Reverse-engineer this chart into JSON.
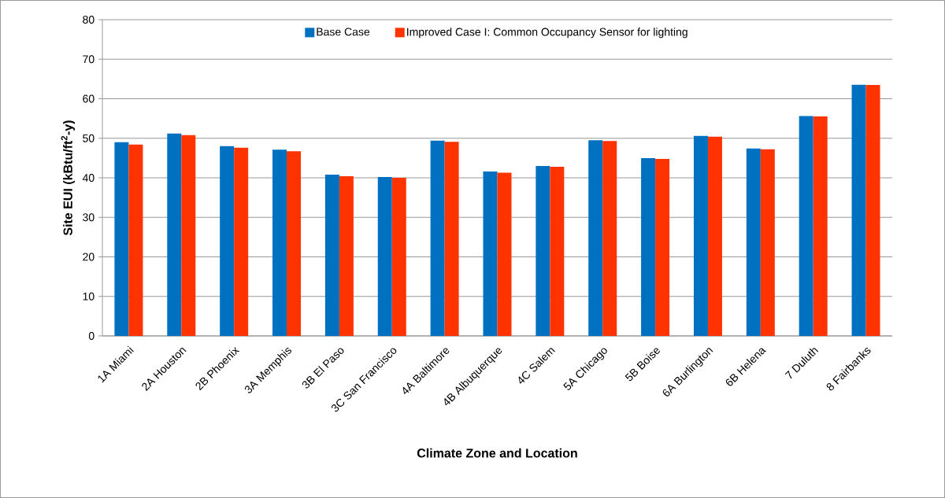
{
  "chart_data": {
    "type": "bar",
    "xlabel": "Climate Zone and Location",
    "ylabel": "Site EUI (kBtu/ft$^{2}$-y)",
    "categories": [
      "1A Miami",
      "2A Houston",
      "2B Phoenix",
      "3A Memphis",
      "3B El Paso",
      "3C San Francisco",
      "4A Baltimore",
      "4B Albuquerque",
      "4C Salem",
      "5A Chicago",
      "5B Boise",
      "6A Burlington",
      "6B Helena",
      "7 Duluth",
      "8 Fairbanks"
    ],
    "series": [
      {
        "name": "Base Case",
        "color": "#0070c0",
        "values": [
          49.0,
          51.2,
          48.0,
          47.1,
          40.8,
          40.2,
          49.4,
          41.6,
          43.0,
          49.5,
          45.0,
          50.6,
          47.4,
          55.6,
          63.6
        ]
      },
      {
        "name": "Improved Case I: Common Occupancy Sensor for lighting",
        "color": "#ff3300",
        "values": [
          48.4,
          50.8,
          47.6,
          46.7,
          40.4,
          40.0,
          49.1,
          41.3,
          42.8,
          49.3,
          44.8,
          50.4,
          47.2,
          55.5,
          63.5
        ]
      }
    ],
    "ylim": [
      0,
      80
    ],
    "yticks": [
      0,
      10,
      20,
      30,
      40,
      50,
      60,
      70,
      80
    ],
    "grid": "y",
    "legend": "top"
  }
}
